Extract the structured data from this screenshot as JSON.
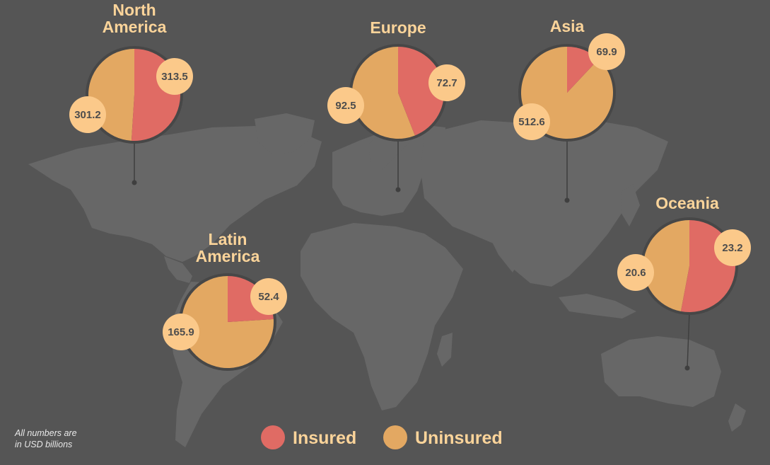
{
  "colors": {
    "background": "#555555",
    "land": "#676767",
    "insured": "#e06b64",
    "uninsured": "#e3a862",
    "bubble": "#fbc98a",
    "bubble_text": "#4d4d4d",
    "title_text": "#fbd49a",
    "leader_line": "#3f3f3f"
  },
  "footnote": {
    "line1": "All numbers are",
    "line2": "in USD billions"
  },
  "chart_data": {
    "type": "pie",
    "legend_position": "bottom-center",
    "legend": [
      {
        "key": "insured",
        "label": "Insured"
      },
      {
        "key": "uninsured",
        "label": "Uninsured"
      }
    ],
    "regions": [
      {
        "id": "north-america",
        "title_lines": [
          "North",
          "America"
        ],
        "insured": 313.5,
        "uninsured": 301.2
      },
      {
        "id": "europe",
        "title_lines": [
          "Europe"
        ],
        "insured": 72.7,
        "uninsured": 92.5
      },
      {
        "id": "asia",
        "title_lines": [
          "Asia"
        ],
        "insured": 69.9,
        "uninsured": 512.6
      },
      {
        "id": "latin-america",
        "title_lines": [
          "Latin",
          "America"
        ],
        "insured": 52.4,
        "uninsured": 165.9
      },
      {
        "id": "oceania",
        "title_lines": [
          "Oceania"
        ],
        "insured": 23.2,
        "uninsured": 20.6
      }
    ]
  }
}
